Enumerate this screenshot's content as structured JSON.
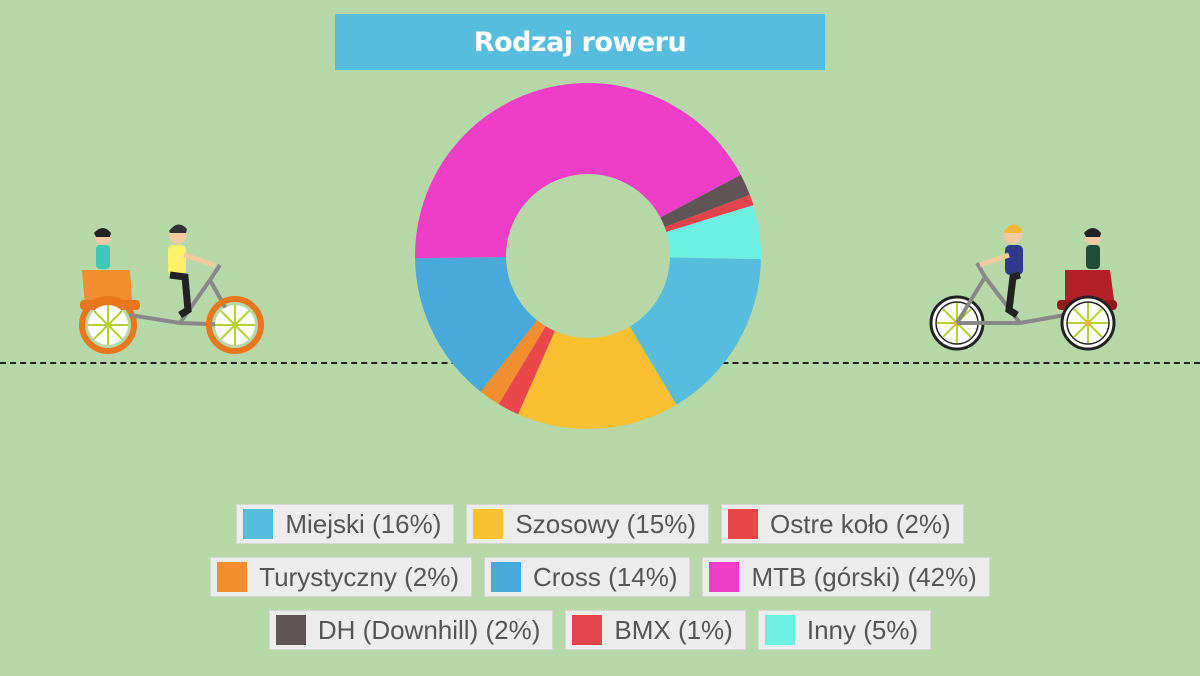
{
  "chart_data": {
    "type": "pie",
    "title": "Rodzaj roweru",
    "donut": true,
    "legend_position": "bottom",
    "slices": [
      {
        "label": "Miejski (16%)",
        "value": 16,
        "color": "#56bddc"
      },
      {
        "label": "Szosowy (15%)",
        "value": 15,
        "color": "#fbbf32"
      },
      {
        "label": "Ostre koło (2%)",
        "value": 2,
        "color": "#e94749"
      },
      {
        "label": "Turystyczny (2%)",
        "value": 2,
        "color": "#f28e30"
      },
      {
        "label": "Cross (14%)",
        "value": 14,
        "color": "#48a9da"
      },
      {
        "label": "MTB (górski) (42%)",
        "value": 42,
        "color": "#ee3ec8"
      },
      {
        "label": "DH (Downhill) (2%)",
        "value": 2,
        "color": "#5f5556"
      },
      {
        "label": "BMX (1%)",
        "value": 1,
        "color": "#e3434a"
      },
      {
        "label": "Inny (5%)",
        "value": 5,
        "color": "#6fefe1"
      }
    ]
  },
  "colors": {
    "background": "#b6d7a8",
    "banner": "#56bddc"
  },
  "illustrations": {
    "left": "rickshaw-bike-orange-icon",
    "right": "rickshaw-bike-red-icon"
  }
}
